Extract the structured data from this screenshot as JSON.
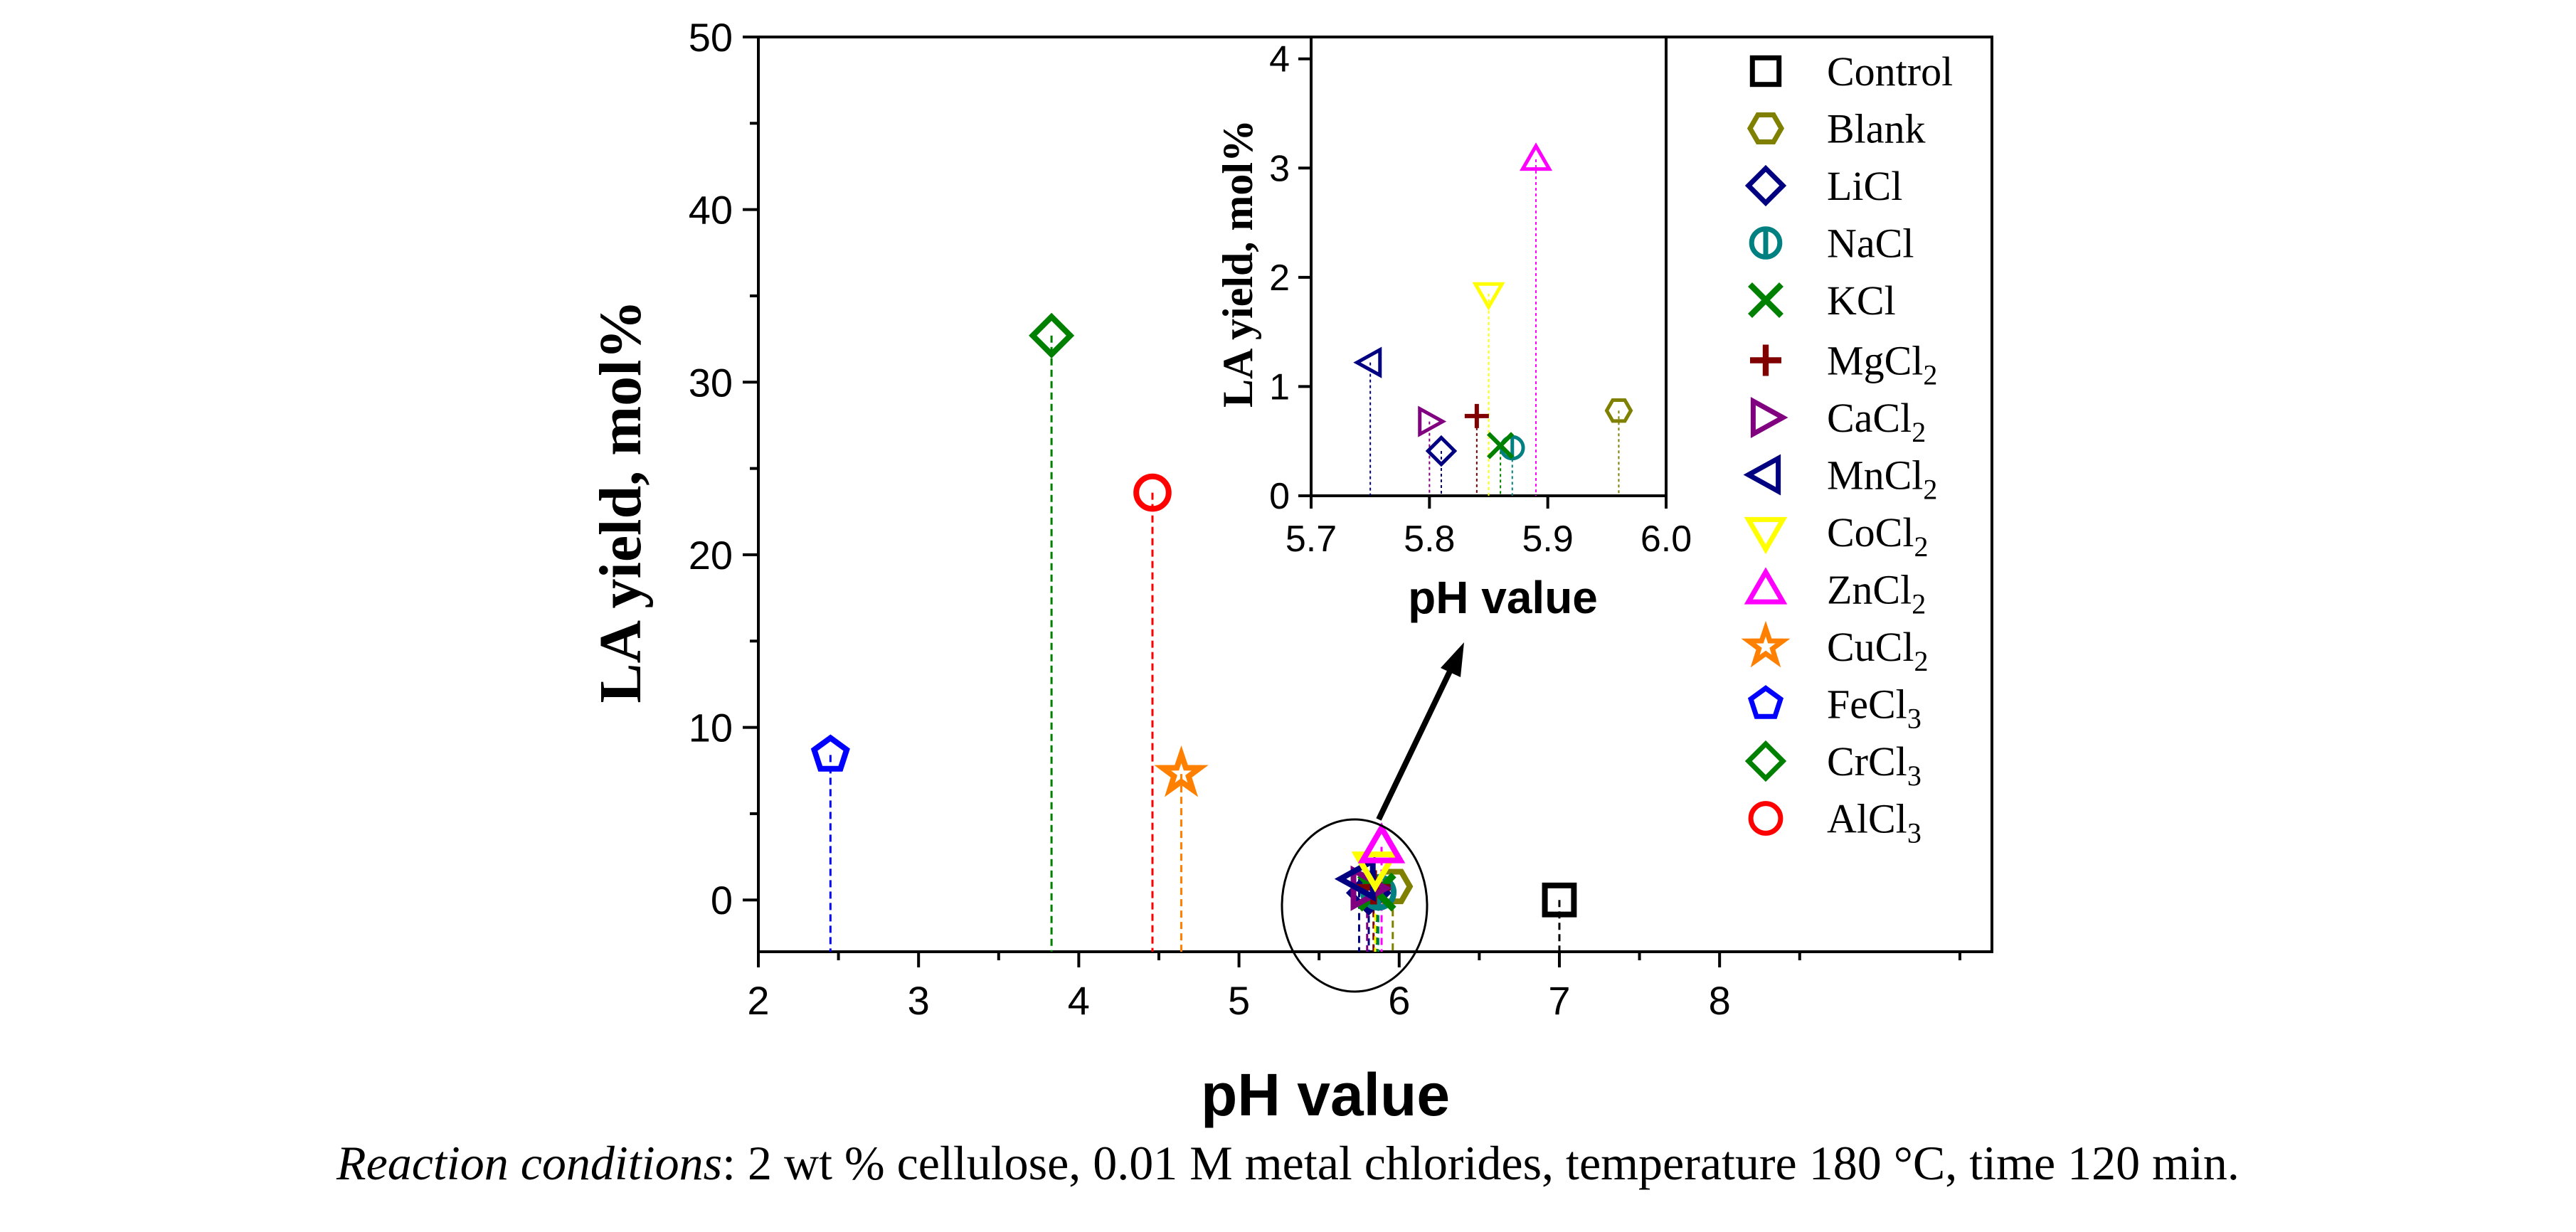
{
  "chart_data": {
    "type": "scatter",
    "xlabel": "pH value",
    "ylabel": "LA yield, mol%",
    "xlim": [
      2,
      9.7
    ],
    "ylim": [
      -3,
      50
    ],
    "xticks": [
      "2",
      "3",
      "4",
      "5",
      "6",
      "7",
      "8"
    ],
    "yticks": [
      "0",
      "10",
      "20",
      "30",
      "40",
      "50"
    ],
    "drop_lines": true,
    "series": [
      {
        "name": "Control",
        "symbol": "square",
        "color": "#000000",
        "x": 7.0,
        "y": 0.0
      },
      {
        "name": "Blank",
        "symbol": "hexagon",
        "color": "#808000",
        "x": 5.96,
        "y": 0.78
      },
      {
        "name": "LiCl",
        "symbol": "diamond",
        "color": "#000080",
        "x": 5.81,
        "y": 0.41
      },
      {
        "name": "NaCl",
        "symbol": "circle-bar",
        "color": "#008080",
        "x": 5.87,
        "y": 0.44
      },
      {
        "name": "KCl",
        "symbol": "x",
        "color": "#008000",
        "x": 5.86,
        "y": 0.46
      },
      {
        "name": "MgCl",
        "sub": "2",
        "symbol": "plus",
        "color": "#800000",
        "x": 5.84,
        "y": 0.73
      },
      {
        "name": "CaCl",
        "sub": "2",
        "symbol": "triangle-right",
        "color": "#800080",
        "x": 5.8,
        "y": 0.68
      },
      {
        "name": "MnCl",
        "sub": "2",
        "symbol": "triangle-left",
        "color": "#000080",
        "x": 5.75,
        "y": 1.22
      },
      {
        "name": "CoCl",
        "sub": "2",
        "symbol": "triangle-down",
        "color": "#ffff00",
        "x": 5.85,
        "y": 1.85
      },
      {
        "name": "ZnCl",
        "sub": "2",
        "symbol": "triangle-up",
        "color": "#ff00ff",
        "x": 5.89,
        "y": 3.08
      },
      {
        "name": "CuCl",
        "sub": "2",
        "symbol": "star",
        "color": "#ff8000",
        "x": 4.64,
        "y": 7.3
      },
      {
        "name": "FeCl",
        "sub": "3",
        "symbol": "pentagon",
        "color": "#0000ff",
        "x": 2.45,
        "y": 8.4
      },
      {
        "name": "CrCl",
        "sub": "3",
        "symbol": "diamond",
        "color": "#008000",
        "x": 3.83,
        "y": 32.7
      },
      {
        "name": "AlCl",
        "sub": "3",
        "symbol": "circle",
        "color": "#ff0000",
        "x": 4.46,
        "y": 23.6
      }
    ],
    "inset": {
      "xlabel": "pH value",
      "ylabel": "LA yield, mol%",
      "xlim": [
        5.7,
        6.0
      ],
      "ylim": [
        0,
        4.2
      ],
      "xticks": [
        "5.7",
        "5.8",
        "5.9",
        "6.0"
      ],
      "yticks": [
        "0",
        "1",
        "2",
        "3",
        "4"
      ],
      "series_included": [
        "Blank",
        "LiCl",
        "NaCl",
        "KCl",
        "MgCl2",
        "CaCl2",
        "MnCl2",
        "CoCl2",
        "ZnCl2"
      ]
    },
    "annotations": [
      "ellipse around points near pH 5.8 with arrow to inset"
    ]
  },
  "caption": {
    "italic_part": "Reaction conditions",
    "rest": ": 2 wt % cellulose, 0.01 M metal chlorides, temperature 180 °C, time 120 min."
  }
}
